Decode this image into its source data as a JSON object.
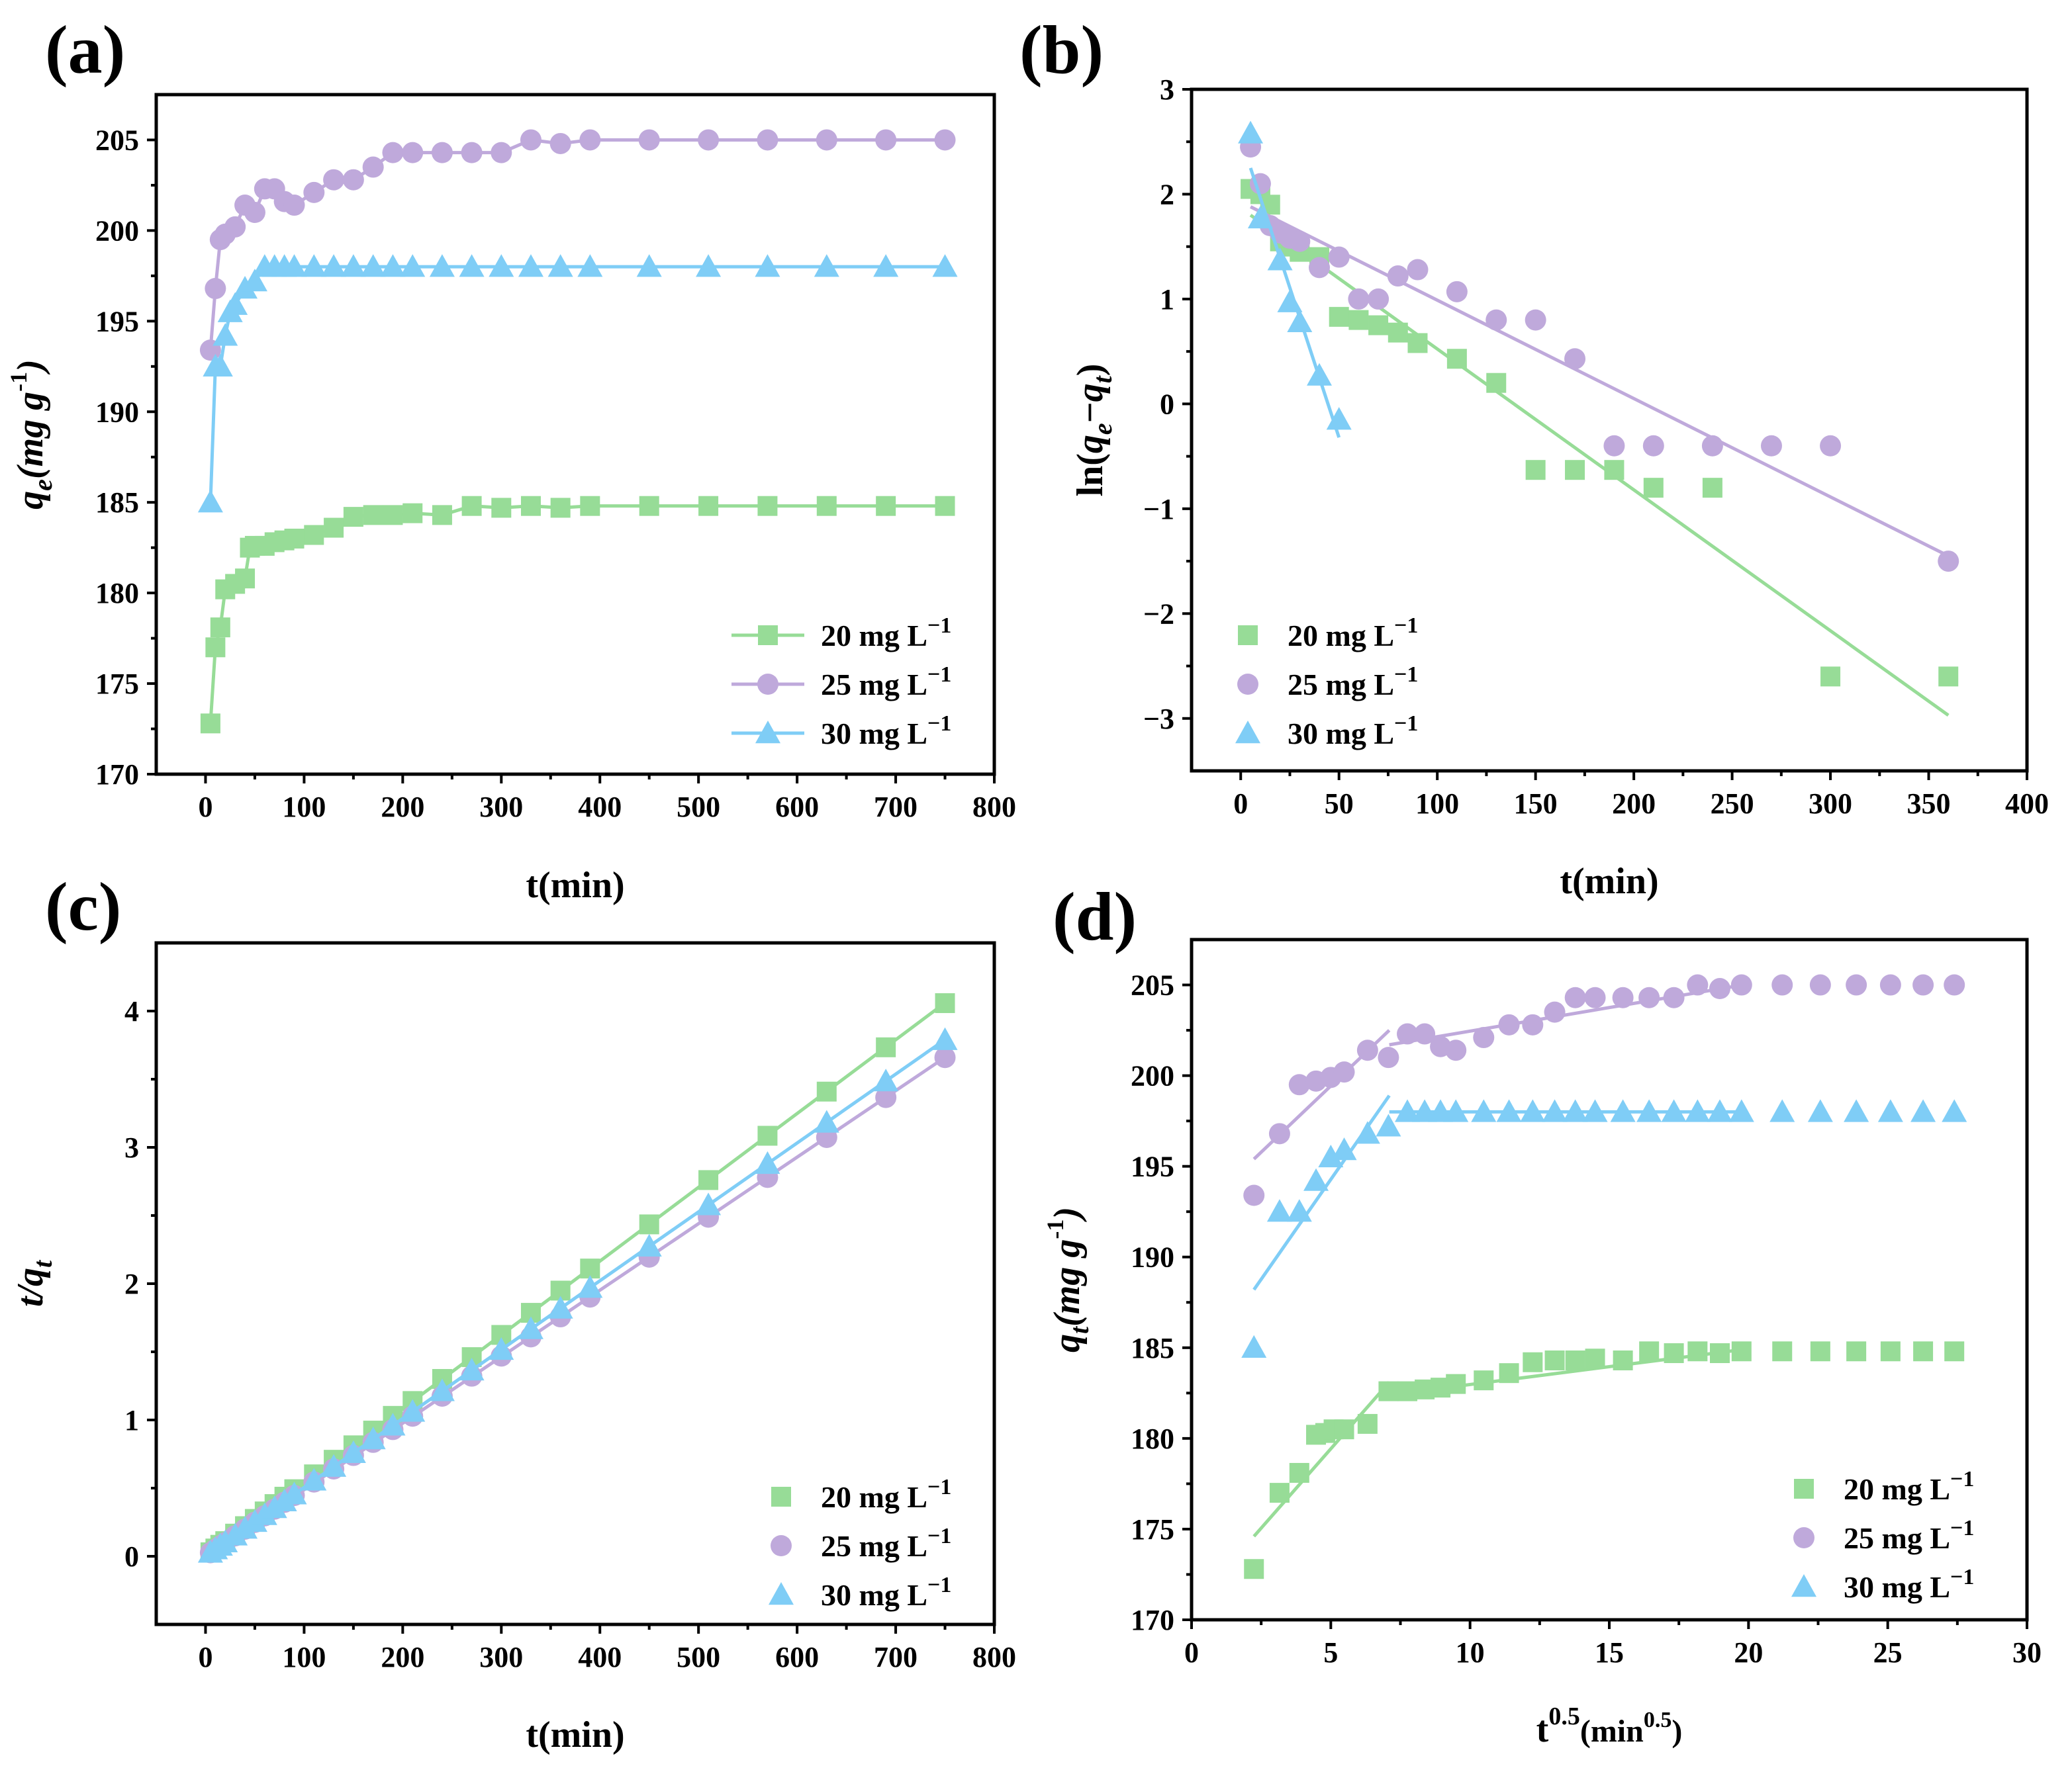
{
  "colors": {
    "20": "#97dc97",
    "25": "#bfa9db",
    "30": "#7fcdf6",
    "axis": "#000000"
  },
  "chart_data": [
    {
      "id": "a",
      "label": "(a)",
      "type": "line",
      "title": "",
      "xlabel": "t(min)",
      "ylabel": "q_e(mg g^-1)",
      "ylabel_parts": {
        "var": "q",
        "sub": "e",
        "unit_a": "(mg g",
        "sup": "-1",
        "unit_b": ")"
      },
      "xlim": [
        -50,
        800
      ],
      "ylim": [
        170,
        207.5
      ],
      "xticks": [
        0,
        100,
        200,
        300,
        400,
        500,
        600,
        700,
        800
      ],
      "yticks": [
        170,
        175,
        180,
        185,
        190,
        195,
        200,
        205
      ],
      "legend": {
        "position": "bottom-right",
        "show_line": true
      },
      "series": [
        {
          "name": "20 mg L−1",
          "color_key": "20",
          "marker": "square",
          "x": [
            5,
            10,
            15,
            20,
            30,
            40,
            45,
            50,
            60,
            70,
            80,
            90,
            110,
            130,
            150,
            170,
            190,
            210,
            240,
            270,
            300,
            330,
            360,
            390,
            450,
            510,
            570,
            630,
            690,
            750
          ],
          "y": [
            172.8,
            177,
            178.1,
            180.2,
            180.5,
            180.8,
            182.5,
            182.6,
            182.6,
            182.8,
            182.9,
            183.0,
            183.2,
            183.6,
            184.2,
            184.3,
            184.3,
            184.4,
            184.3,
            184.8,
            184.7,
            184.8,
            184.7,
            184.8,
            184.8,
            184.8,
            184.8,
            184.8,
            184.8,
            184.8
          ]
        },
        {
          "name": "25 mg L−1",
          "color_key": "25",
          "marker": "circle",
          "x": [
            5,
            10,
            15,
            20,
            30,
            40,
            50,
            60,
            70,
            80,
            90,
            110,
            130,
            150,
            170,
            190,
            210,
            240,
            270,
            300,
            330,
            360,
            390,
            450,
            510,
            570,
            630,
            690,
            750
          ],
          "y": [
            193.4,
            196.8,
            199.5,
            199.8,
            200.2,
            201.4,
            201.0,
            202.3,
            202.3,
            201.6,
            201.4,
            202.1,
            202.8,
            202.8,
            203.5,
            204.3,
            204.3,
            204.3,
            204.3,
            204.3,
            205.0,
            204.8,
            205.0,
            205.0,
            205.0,
            205.0,
            205.0,
            205.0,
            205.0
          ]
        },
        {
          "name": "30 mg L−1",
          "color_key": "30",
          "marker": "triangle",
          "x": [
            5,
            10,
            15,
            20,
            25,
            30,
            40,
            50,
            60,
            70,
            80,
            90,
            110,
            130,
            150,
            170,
            190,
            210,
            240,
            270,
            300,
            330,
            360,
            390,
            450,
            510,
            570,
            630,
            690,
            750
          ],
          "y": [
            185.0,
            192.5,
            192.5,
            194.2,
            195.5,
            195.9,
            196.8,
            197.2,
            198.0,
            198.0,
            198.0,
            198.0,
            198.0,
            198.0,
            198.0,
            198.0,
            198.0,
            198.0,
            198.0,
            198.0,
            198.0,
            198.0,
            198.0,
            198.0,
            198.0,
            198.0,
            198.0,
            198.0,
            198.0,
            198.0
          ]
        }
      ]
    },
    {
      "id": "b",
      "label": "(b)",
      "type": "scatter",
      "title": "",
      "xlabel": "t(min)",
      "ylabel": "ln(q_e−q_t)",
      "ylabel_parts": {
        "pre": "ln(",
        "var1": "q",
        "sub1": "e",
        "mid": "−",
        "var2": "q",
        "sub2": "t",
        "post": ")"
      },
      "xlim": [
        -25,
        400
      ],
      "ylim": [
        -3.5,
        3
      ],
      "xticks": [
        0,
        50,
        100,
        150,
        200,
        250,
        300,
        350,
        400
      ],
      "yticks": [
        -3,
        -2,
        -1,
        0,
        1,
        2,
        3
      ],
      "legend": {
        "position": "bottom-left",
        "show_line": false
      },
      "series": [
        {
          "name": "20 mg L−1",
          "color_key": "20",
          "marker": "square",
          "x": [
            5,
            10,
            15,
            20,
            25,
            30,
            40,
            50,
            60,
            70,
            80,
            90,
            110,
            130,
            150,
            170,
            190,
            210,
            240,
            300,
            360
          ],
          "y": [
            2.05,
            2.0,
            1.9,
            1.55,
            1.5,
            1.45,
            1.4,
            0.83,
            0.8,
            0.75,
            0.68,
            0.58,
            0.43,
            0.2,
            -0.63,
            -0.63,
            -0.63,
            -0.8,
            -0.8,
            -2.6,
            -2.6
          ],
          "fit": {
            "x": [
              5,
              360
            ],
            "y": [
              1.8,
              -2.97
            ]
          }
        },
        {
          "name": "25 mg L−1",
          "color_key": "25",
          "marker": "circle",
          "x": [
            5,
            10,
            15,
            20,
            25,
            30,
            40,
            50,
            60,
            70,
            80,
            90,
            110,
            130,
            150,
            170,
            190,
            210,
            240,
            270,
            300,
            360
          ],
          "y": [
            2.45,
            2.1,
            1.7,
            1.63,
            1.58,
            1.55,
            1.3,
            1.4,
            1.0,
            1.0,
            1.22,
            1.28,
            1.07,
            0.8,
            0.8,
            0.43,
            -0.4,
            -0.4,
            -0.4,
            -0.4,
            -0.4,
            -1.5
          ],
          "fit": {
            "x": [
              5,
              360
            ],
            "y": [
              1.88,
              -1.45
            ]
          }
        },
        {
          "name": "30 mg L−1",
          "color_key": "30",
          "marker": "triangle",
          "x": [
            5,
            10,
            20,
            25,
            30,
            40,
            50
          ],
          "y": [
            2.58,
            1.77,
            1.37,
            0.97,
            0.78,
            0.27,
            -0.15
          ],
          "fit": {
            "x": [
              5,
              50
            ],
            "y": [
              2.25,
              -0.32
            ]
          }
        }
      ]
    },
    {
      "id": "c",
      "label": "(c)",
      "type": "scatter",
      "title": "",
      "xlabel": "t(min)",
      "ylabel": "t/q_t",
      "ylabel_parts": {
        "var": "t/q",
        "sub": "t"
      },
      "xlim": [
        -50,
        800
      ],
      "ylim": [
        -0.5,
        4.5
      ],
      "xticks": [
        0,
        100,
        200,
        300,
        400,
        500,
        600,
        700,
        800
      ],
      "yticks": [
        0,
        1,
        2,
        3,
        4
      ],
      "legend": {
        "position": "bottom-right",
        "show_line": false
      },
      "series": [
        {
          "name": "20 mg L−1",
          "color_key": "20",
          "marker": "square",
          "x": [
            5,
            10,
            15,
            20,
            30,
            40,
            50,
            60,
            70,
            80,
            90,
            110,
            130,
            150,
            170,
            190,
            210,
            240,
            270,
            300,
            330,
            360,
            390,
            450,
            510,
            570,
            630,
            690,
            750
          ],
          "y": [
            0.029,
            0.057,
            0.084,
            0.111,
            0.166,
            0.221,
            0.274,
            0.329,
            0.383,
            0.437,
            0.492,
            0.601,
            0.708,
            0.814,
            0.922,
            1.03,
            1.139,
            1.301,
            1.461,
            1.624,
            1.786,
            1.949,
            2.111,
            2.435,
            2.76,
            3.085,
            3.409,
            3.734,
            4.058
          ],
          "fit": {
            "x": [
              0,
              750
            ],
            "y": [
              0.0,
              4.06
            ]
          }
        },
        {
          "name": "25 mg L−1",
          "color_key": "25",
          "marker": "circle",
          "x": [
            5,
            10,
            15,
            20,
            30,
            40,
            50,
            60,
            70,
            80,
            90,
            110,
            130,
            150,
            170,
            190,
            210,
            240,
            270,
            300,
            330,
            360,
            390,
            450,
            510,
            570,
            630,
            690,
            750
          ],
          "y": [
            0.026,
            0.051,
            0.075,
            0.1,
            0.15,
            0.199,
            0.249,
            0.297,
            0.346,
            0.396,
            0.446,
            0.545,
            0.641,
            0.74,
            0.836,
            0.93,
            1.028,
            1.175,
            1.322,
            1.469,
            1.61,
            1.757,
            1.902,
            2.195,
            2.488,
            2.78,
            3.073,
            3.366,
            3.659
          ],
          "fit": {
            "x": [
              0,
              750
            ],
            "y": [
              0.0,
              3.66
            ]
          }
        },
        {
          "name": "30 mg L−1",
          "color_key": "30",
          "marker": "triangle",
          "x": [
            5,
            10,
            15,
            20,
            30,
            40,
            50,
            60,
            70,
            80,
            90,
            110,
            130,
            150,
            170,
            190,
            210,
            240,
            270,
            300,
            330,
            360,
            390,
            450,
            510,
            570,
            630,
            690,
            750
          ],
          "y": [
            0.027,
            0.052,
            0.078,
            0.103,
            0.153,
            0.203,
            0.253,
            0.303,
            0.354,
            0.404,
            0.455,
            0.556,
            0.657,
            0.758,
            0.859,
            0.96,
            1.061,
            1.212,
            1.364,
            1.515,
            1.667,
            1.818,
            1.97,
            2.273,
            2.576,
            2.879,
            3.182,
            3.485,
            3.788
          ],
          "fit": {
            "x": [
              0,
              750
            ],
            "y": [
              0.0,
              3.79
            ]
          }
        }
      ]
    },
    {
      "id": "d",
      "label": "(d)",
      "type": "scatter",
      "title": "",
      "xlabel": "t^0.5(min^0.5)",
      "ylabel": "q_t(mg g^-1)",
      "xlabel_parts": {
        "base": "t",
        "sup": "0.5",
        "unit_a": "(min",
        "sup2": "0.5",
        "unit_b": ")"
      },
      "ylabel_parts": {
        "var": "q",
        "sub": "t",
        "unit_a": "(mg g",
        "sup": "-1",
        "unit_b": ")"
      },
      "xlim": [
        0,
        30
      ],
      "ylim": [
        170,
        207.5
      ],
      "xticks": [
        0,
        5,
        10,
        15,
        20,
        25,
        30
      ],
      "yticks": [
        170,
        175,
        180,
        185,
        190,
        195,
        200,
        205
      ],
      "legend": {
        "position": "bottom-right",
        "show_line": false
      },
      "series": [
        {
          "name": "20 mg L−1",
          "color_key": "20",
          "marker": "square",
          "x": [
            2.24,
            3.16,
            3.87,
            4.47,
            4.8,
            5.1,
            5.48,
            6.32,
            7.07,
            7.75,
            8.37,
            8.94,
            9.49,
            10.49,
            11.4,
            12.25,
            13.04,
            13.78,
            14.49,
            15.49,
            16.43,
            17.32,
            18.17,
            18.97,
            19.75,
            21.21,
            22.58,
            23.87,
            25.1,
            26.27,
            27.39
          ],
          "y": [
            172.8,
            177.0,
            178.1,
            180.2,
            180.3,
            180.5,
            180.5,
            180.8,
            182.6,
            182.6,
            182.7,
            182.8,
            183.0,
            183.2,
            183.6,
            184.2,
            184.3,
            184.3,
            184.4,
            184.3,
            184.8,
            184.7,
            184.8,
            184.7,
            184.8,
            184.8,
            184.8,
            184.8,
            184.8,
            184.8,
            184.8
          ],
          "fit_lines": [
            {
              "x": [
                2.24,
                7.1
              ],
              "y": [
                174.6,
                183.1
              ]
            },
            {
              "x": [
                7.1,
                19.8
              ],
              "y": [
                182.4,
                184.9
              ]
            }
          ]
        },
        {
          "name": "25 mg L−1",
          "color_key": "25",
          "marker": "circle",
          "x": [
            2.24,
            3.16,
            3.87,
            4.47,
            5.0,
            5.48,
            6.32,
            7.07,
            7.75,
            8.37,
            8.94,
            9.49,
            10.49,
            11.4,
            12.25,
            13.04,
            13.78,
            14.49,
            15.49,
            16.43,
            17.32,
            18.17,
            18.97,
            19.75,
            21.21,
            22.58,
            23.87,
            25.1,
            26.27,
            27.39
          ],
          "y": [
            193.4,
            196.8,
            199.5,
            199.7,
            199.9,
            200.2,
            201.4,
            201.0,
            202.3,
            202.3,
            201.6,
            201.4,
            202.1,
            202.8,
            202.8,
            203.5,
            204.3,
            204.3,
            204.3,
            204.3,
            204.3,
            205.0,
            204.8,
            205.0,
            205.0,
            205.0,
            205.0,
            205.0,
            205.0,
            205.0
          ],
          "fit_lines": [
            {
              "x": [
                2.24,
                7.1
              ],
              "y": [
                195.4,
                202.5
              ]
            },
            {
              "x": [
                7.1,
                19.8
              ],
              "y": [
                201.7,
                205.0
              ]
            }
          ]
        },
        {
          "name": "30 mg L−1",
          "color_key": "30",
          "marker": "triangle",
          "x": [
            2.24,
            3.16,
            3.87,
            4.47,
            5.0,
            5.48,
            6.32,
            7.07,
            7.75,
            8.37,
            8.94,
            9.49,
            10.49,
            11.4,
            12.25,
            13.04,
            13.78,
            14.49,
            15.49,
            16.43,
            17.32,
            18.17,
            18.97,
            19.75,
            21.21,
            22.58,
            23.87,
            25.1,
            26.27,
            27.39
          ],
          "y": [
            185.0,
            192.5,
            192.5,
            194.2,
            195.5,
            195.9,
            196.8,
            197.2,
            198.0,
            198.0,
            198.0,
            198.0,
            198.0,
            198.0,
            198.0,
            198.0,
            198.0,
            198.0,
            198.0,
            198.0,
            198.0,
            198.0,
            198.0,
            198.0,
            198.0,
            198.0,
            198.0,
            198.0,
            198.0,
            198.0
          ],
          "fit_lines": [
            {
              "x": [
                2.24,
                7.1
              ],
              "y": [
                188.2,
                198.9
              ]
            },
            {
              "x": [
                7.1,
                19.8
              ],
              "y": [
                198.0,
                198.0
              ]
            }
          ]
        }
      ]
    }
  ]
}
